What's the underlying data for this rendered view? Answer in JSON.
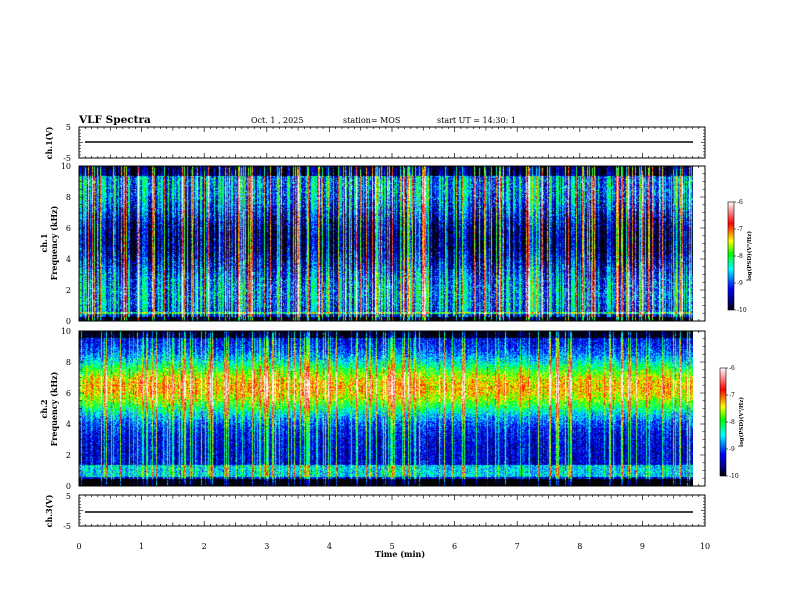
{
  "header": {
    "title": "VLF Spectra",
    "date": "Oct. 1 , 2025",
    "station": "station= MOS",
    "start": "start UT = 14:30: 1"
  },
  "chart_data": [
    {
      "type": "line",
      "name": "ch1-voltage",
      "ylabel": "ch.1(V)",
      "ylim": [
        -5,
        5
      ],
      "yticks": [
        "5",
        "-5"
      ],
      "baseline_value": 0
    },
    {
      "type": "heatmap",
      "name": "ch1-spectrogram",
      "ylabel_line1": "ch.1",
      "ylabel_line2": "Frequency (kHz)",
      "ylim": [
        0,
        10
      ],
      "yticks": [
        "0",
        "2",
        "4",
        "6",
        "8",
        "10"
      ],
      "xlim": [
        0,
        10
      ],
      "colorbar": {
        "label": "log(PSD)(V²/Hz)",
        "range": [
          -10,
          -6
        ],
        "ticks": [
          "-6",
          "-7",
          "-8",
          "-9",
          "-10"
        ]
      },
      "description_band": "broadband vertical impulses across 0-10 kHz"
    },
    {
      "type": "heatmap",
      "name": "ch2-spectrogram",
      "ylabel_line1": "ch.2",
      "ylabel_line2": "Frequency (kHz)",
      "ylim": [
        0,
        10
      ],
      "yticks": [
        "0",
        "2",
        "4",
        "6",
        "8",
        "10"
      ],
      "xlim": [
        0,
        10
      ],
      "colorbar": {
        "label": "log(PSD)(V²/Hz)",
        "range": [
          -10,
          -6
        ],
        "ticks": [
          "-6",
          "-7",
          "-8",
          "-9",
          "-10"
        ]
      },
      "description_band": "strong emission band centered near 6-7 kHz"
    },
    {
      "type": "line",
      "name": "ch3-voltage",
      "ylabel": "ch.3(V)",
      "ylim": [
        -5,
        5
      ],
      "yticks": [
        "5",
        "-5"
      ],
      "baseline_value": 0
    }
  ],
  "xaxis": {
    "label": "Time (min)",
    "range": [
      0,
      10
    ],
    "ticks": [
      "0",
      "1",
      "2",
      "3",
      "4",
      "5",
      "6",
      "7",
      "8",
      "9",
      "10"
    ]
  },
  "colors": {
    "scale": [
      "#000000",
      "#000080",
      "#0000ff",
      "#00ffff",
      "#00ff00",
      "#ffff00",
      "#ff0000",
      "#ffffff"
    ]
  }
}
